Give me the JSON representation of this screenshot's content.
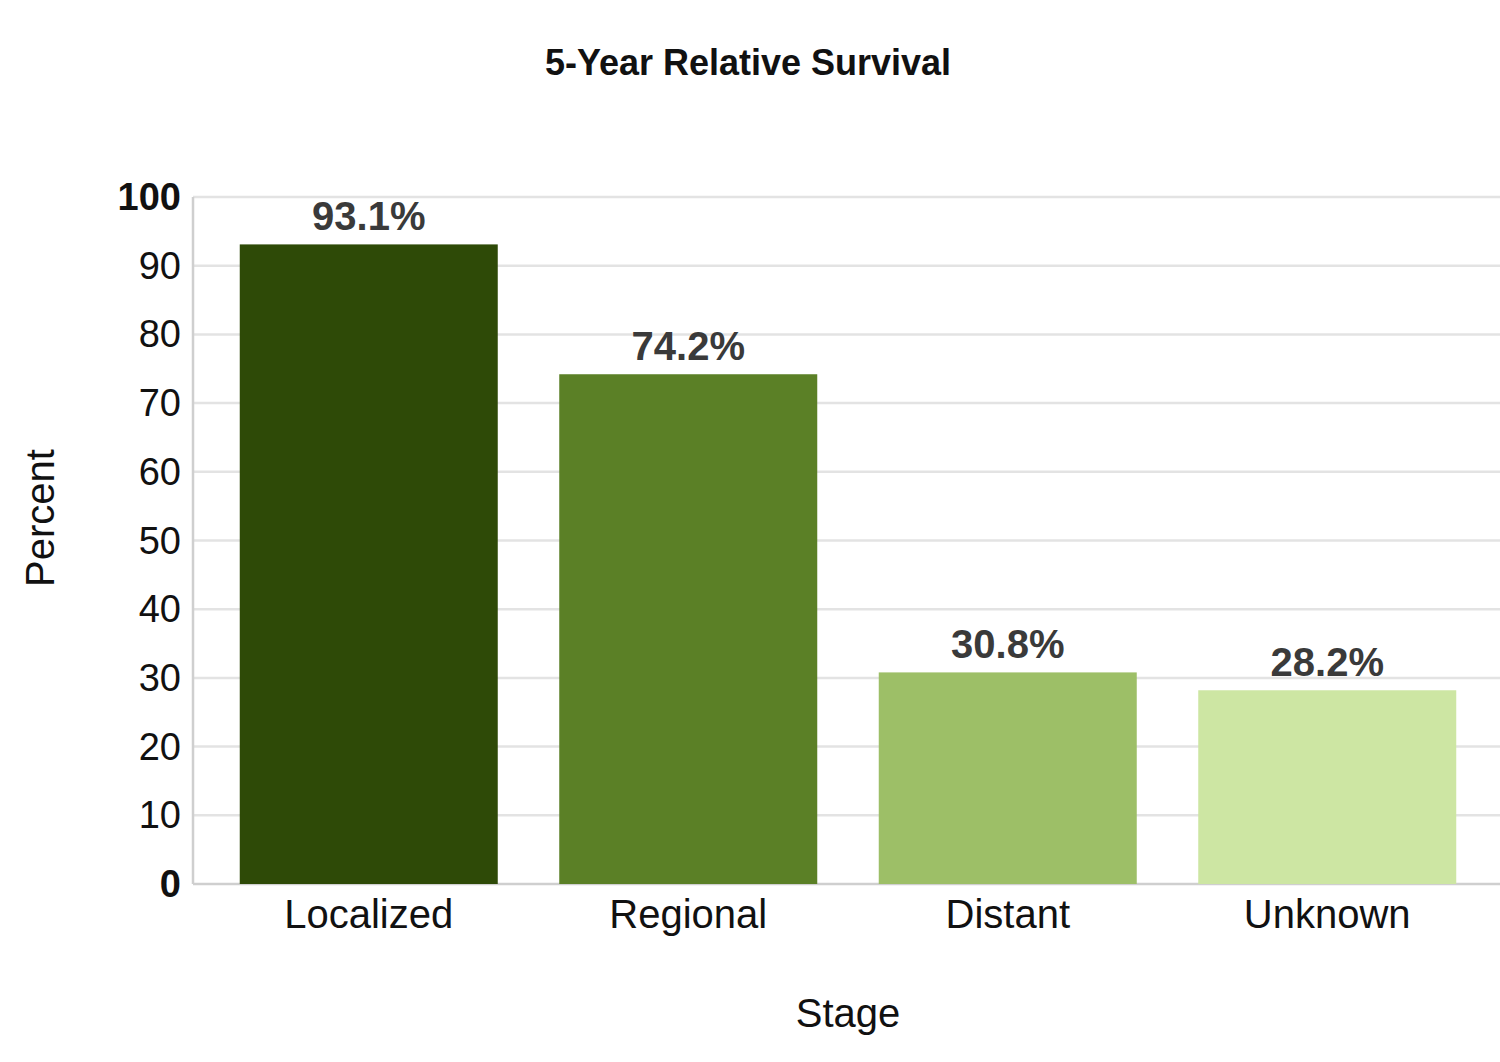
{
  "chart_data": {
    "type": "bar",
    "title": "5-Year Relative Survival",
    "x_label": "Stage",
    "y_label": "Percent",
    "categories": [
      "Localized",
      "Regional",
      "Distant",
      "Unknown"
    ],
    "values": [
      93.1,
      74.2,
      30.8,
      28.2
    ],
    "value_labels": [
      "93.1%",
      "74.2%",
      "30.8%",
      "28.2%"
    ],
    "colors": [
      "#2e4a07",
      "#5b8026",
      "#9dbf67",
      "#cde6a3"
    ],
    "ylim": [
      0,
      100
    ],
    "yticks": [
      0,
      10,
      20,
      30,
      40,
      50,
      60,
      70,
      80,
      90,
      100
    ],
    "grid": true,
    "data_labels": true
  }
}
